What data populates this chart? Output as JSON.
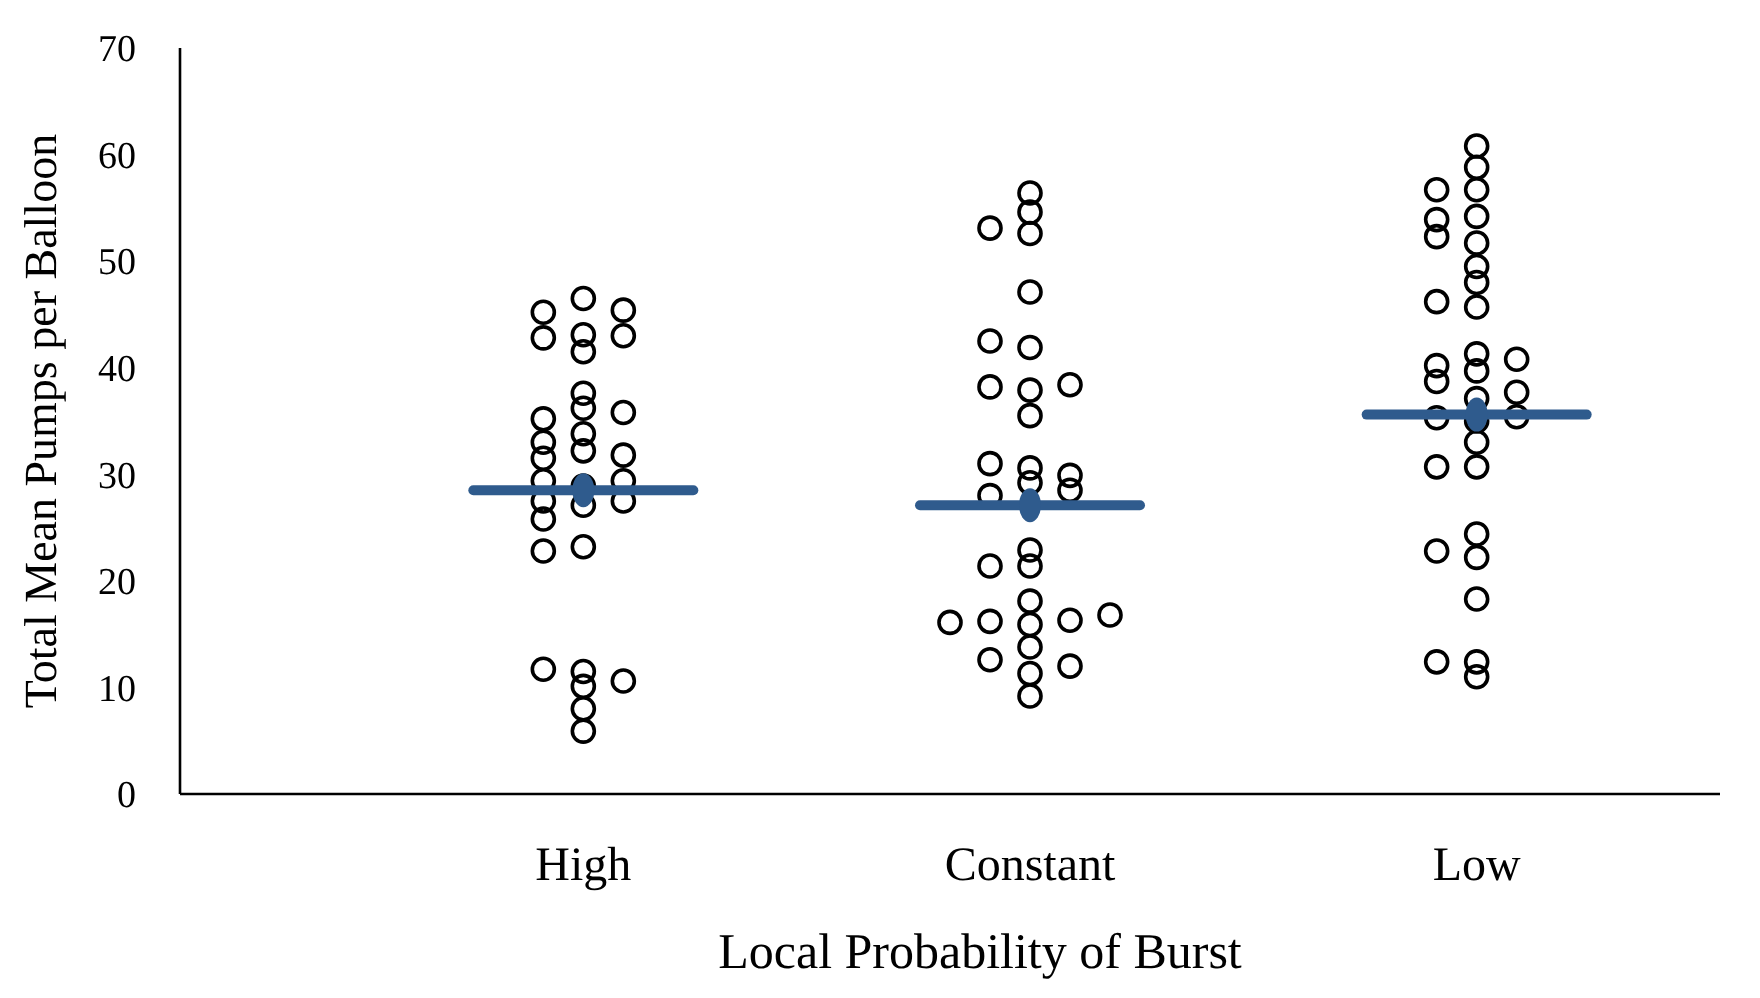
{
  "chart_data": {
    "type": "scatter",
    "xlabel": "Local Probability of Burst",
    "ylabel": "Total Mean Pumps per Balloon",
    "categories": [
      "High",
      "Constant",
      "Low"
    ],
    "ylim": [
      0,
      70
    ],
    "yticks": [
      0,
      10,
      20,
      30,
      40,
      50,
      60,
      70
    ],
    "grid": false,
    "series": [
      {
        "type": "scatter",
        "color": "#000000",
        "marker": "circle",
        "x": [
          "High",
          "High",
          "High",
          "High",
          "High",
          "High",
          "High",
          "High",
          "High",
          "High",
          "High",
          "High",
          "High",
          "High",
          "High",
          "High",
          "High",
          "High",
          "High",
          "High",
          "High",
          "High",
          "High",
          "High",
          "High",
          "High",
          "High",
          "High",
          "High",
          "High",
          "High",
          "Constant",
          "Constant",
          "Constant",
          "Constant",
          "Constant",
          "Constant",
          "Constant",
          "Constant",
          "Constant",
          "Constant",
          "Constant",
          "Constant",
          "Constant",
          "Constant",
          "Constant",
          "Constant",
          "Constant",
          "Constant",
          "Constant",
          "Constant",
          "Constant",
          "Constant",
          "Constant",
          "Constant",
          "Constant",
          "Constant",
          "Constant",
          "Constant",
          "Constant",
          "Constant",
          "Constant",
          "Low",
          "Low",
          "Low",
          "Low",
          "Low",
          "Low",
          "Low",
          "Low",
          "Low",
          "Low",
          "Low",
          "Low",
          "Low",
          "Low",
          "Low",
          "Low",
          "Low",
          "Low",
          "Low",
          "Low",
          "Low",
          "Low",
          "Low",
          "Low",
          "Low",
          "Low",
          "Low",
          "Low",
          "Low",
          "Low",
          "Low",
          "Low"
        ],
        "values": [
          46.5,
          43.1,
          41.5,
          37.6,
          36.2,
          32.2,
          28.9,
          27.1,
          25.8,
          23.2,
          22.8,
          8.0,
          5.9,
          45.2,
          42.8,
          35.2,
          33.0,
          31.5,
          29.4,
          27.5,
          11.5,
          10.1,
          45.4,
          43.0,
          35.8,
          33.8,
          31.8,
          29.4,
          27.5,
          11.7,
          10.6,
          56.4,
          54.6,
          47.1,
          37.9,
          35.5,
          22.9,
          18.1,
          15.9,
          13.8,
          12.6,
          9.2,
          52.6,
          41.9,
          38.2,
          30.6,
          29.2,
          28.0,
          21.4,
          16.2,
          11.3,
          53.1,
          42.5,
          38.4,
          31.0,
          29.9,
          28.5,
          21.4,
          16.3,
          12.0,
          16.1,
          16.8,
          60.8,
          58.8,
          54.2,
          51.7,
          49.5,
          48.0,
          41.3,
          39.7,
          38.7,
          35.0,
          33.0,
          24.4,
          18.3,
          11.0,
          56.7,
          52.3,
          45.7,
          40.2,
          37.1,
          35.3,
          30.7,
          22.2,
          12.4,
          56.7,
          53.9,
          46.2,
          40.8,
          37.7,
          35.4,
          30.7,
          22.8,
          12.4
        ]
      },
      {
        "type": "scatter",
        "color": "#2f5b8d",
        "marker": "circle",
        "line_style": "solid",
        "x": [
          "High",
          "Constant",
          "Low"
        ],
        "values": [
          28.5,
          27.1,
          35.6
        ]
      }
    ]
  }
}
